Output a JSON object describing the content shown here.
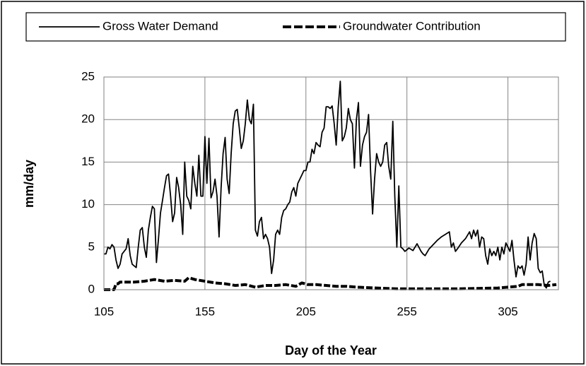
{
  "chart_data": {
    "type": "line",
    "xlabel": "Day of the Year",
    "ylabel": "mm/day",
    "xlim": [
      105,
      330
    ],
    "xticks": [
      105,
      155,
      205,
      255,
      305
    ],
    "ylim": [
      0,
      25
    ],
    "yticks": [
      0,
      5,
      10,
      15,
      20,
      25
    ],
    "grid": true,
    "legend": "top",
    "series": [
      {
        "name": "Gross Water Demand",
        "color": "#000000",
        "dashed": false,
        "x": [
          105,
          106,
          107,
          108,
          109,
          110,
          111,
          112,
          113,
          114,
          116,
          117,
          118,
          119,
          120,
          121,
          122,
          123,
          124,
          125,
          126,
          127,
          128,
          129,
          130,
          131,
          132,
          133,
          134,
          135,
          136,
          137,
          138,
          139,
          140,
          141,
          142,
          143,
          144,
          145,
          146,
          147,
          148,
          149,
          150,
          151,
          152,
          153,
          154,
          155,
          156,
          157,
          158,
          159,
          160,
          161,
          162,
          163,
          164,
          165,
          166,
          167,
          168,
          169,
          170,
          171,
          172,
          173,
          174,
          175,
          176,
          177,
          178,
          179,
          180,
          181,
          182,
          183,
          184,
          185,
          186,
          187,
          188,
          189,
          190,
          191,
          192,
          193,
          194,
          195,
          196,
          197,
          198,
          199,
          200,
          201,
          202,
          203,
          204,
          205,
          206,
          207,
          208,
          209,
          210,
          211,
          212,
          213,
          214,
          215,
          216,
          217,
          218,
          219,
          220,
          221,
          222,
          223,
          224,
          225,
          226,
          227,
          228,
          229,
          230,
          231,
          232,
          233,
          234,
          235,
          236,
          237,
          238,
          239,
          240,
          241,
          242,
          243,
          244,
          245,
          246,
          247,
          248,
          249,
          250,
          251,
          252,
          253,
          254,
          256,
          258,
          259,
          260,
          262,
          263,
          264,
          266,
          268,
          270,
          272,
          274,
          276,
          277,
          278,
          279,
          280,
          282,
          284,
          286,
          287,
          288,
          289,
          290,
          291,
          292,
          293,
          294,
          295,
          296,
          297,
          298,
          299,
          300,
          301,
          302,
          303,
          304,
          305,
          306,
          307,
          308,
          309,
          310,
          311,
          312,
          313,
          314,
          315,
          316,
          317,
          318,
          319,
          320,
          321,
          322,
          323,
          324,
          325,
          326
        ],
        "values": [
          4.2,
          4.2,
          5.0,
          4.8,
          5.3,
          5.0,
          3.5,
          2.5,
          3.0,
          4.2,
          4.8,
          6.0,
          4.0,
          3.0,
          2.8,
          2.6,
          5.0,
          7.0,
          7.3,
          5.0,
          3.8,
          7.0,
          8.5,
          9.8,
          9.5,
          3.2,
          6.0,
          9.0,
          10.5,
          12.0,
          13.4,
          13.6,
          11.0,
          8.0,
          9.0,
          13.2,
          12.0,
          10.0,
          6.5,
          15.0,
          11.0,
          10.5,
          9.5,
          14.5,
          12.5,
          11.0,
          15.8,
          11.0,
          11.0,
          18.0,
          12.5,
          17.8,
          10.8,
          11.5,
          13.0,
          11.0,
          6.2,
          12.0,
          16.0,
          17.9,
          13.0,
          11.3,
          16.0,
          19.5,
          21.0,
          21.2,
          19.0,
          16.6,
          17.5,
          19.5,
          22.3,
          20.0,
          19.5,
          21.8,
          7.0,
          6.3,
          8.0,
          8.5,
          6.0,
          6.5,
          6.0,
          5.0,
          1.9,
          3.5,
          6.5,
          7.0,
          6.5,
          8.5,
          9.3,
          9.5,
          10.0,
          10.3,
          11.5,
          12.0,
          11.0,
          12.5,
          13.0,
          13.5,
          14.0,
          14.0,
          15.0,
          15.0,
          16.5,
          16.0,
          17.3,
          17.0,
          16.8,
          18.5,
          19.0,
          21.5,
          21.5,
          21.3,
          21.6,
          19.5,
          17.0,
          21.5,
          24.5,
          17.5,
          18.0,
          19.0,
          21.3,
          20.0,
          19.5,
          14.3,
          20.0,
          22.0,
          14.5,
          17.0,
          18.0,
          18.5,
          20.6,
          14.0,
          8.9,
          13.0,
          16.0,
          15.0,
          14.5,
          15.0,
          17.0,
          17.3,
          14.5,
          13.0,
          19.8,
          11.0,
          5.0,
          12.2,
          5.0,
          4.8,
          4.5,
          4.9,
          4.6,
          5.0,
          5.4,
          4.5,
          4.2,
          4.0,
          4.8,
          5.3,
          5.8,
          6.2,
          6.5,
          6.8,
          5.0,
          5.5,
          4.5,
          4.8,
          5.5,
          6.0,
          6.8,
          6.0,
          7.0,
          6.3,
          7.0,
          5.0,
          6.2,
          6.0,
          4.0,
          3.0,
          4.8,
          4.0,
          4.5,
          4.0,
          5.0,
          3.5,
          5.0,
          4.2,
          5.5,
          5.0,
          4.5,
          5.8,
          3.5,
          1.5,
          2.8,
          2.5,
          2.8,
          1.7,
          3.0,
          6.2,
          3.5,
          5.5,
          6.6,
          6.0,
          2.5,
          2.0,
          2.2,
          0.5,
          0.2,
          0.9,
          1.0
        ]
      },
      {
        "name": "Groundwater Contribution",
        "color": "#000000",
        "dashed": true,
        "x": [
          105,
          110,
          111,
          112,
          113,
          120,
          125,
          130,
          135,
          140,
          145,
          147,
          150,
          155,
          160,
          165,
          170,
          175,
          180,
          185,
          190,
          195,
          200,
          203,
          206,
          210,
          215,
          220,
          225,
          230,
          240,
          250,
          260,
          280,
          300,
          310,
          312,
          320,
          325,
          329
        ],
        "values": [
          0,
          0,
          0.7,
          0.7,
          0.9,
          0.9,
          1.0,
          1.2,
          1.0,
          1.1,
          1.0,
          1.4,
          1.2,
          1.0,
          0.8,
          0.7,
          0.5,
          0.6,
          0.3,
          0.5,
          0.5,
          0.6,
          0.4,
          0.8,
          0.6,
          0.6,
          0.5,
          0.4,
          0.4,
          0.3,
          0.2,
          0.1,
          0.1,
          0.1,
          0.2,
          0.4,
          0.6,
          0.6,
          0.5,
          0.6
        ]
      }
    ]
  }
}
